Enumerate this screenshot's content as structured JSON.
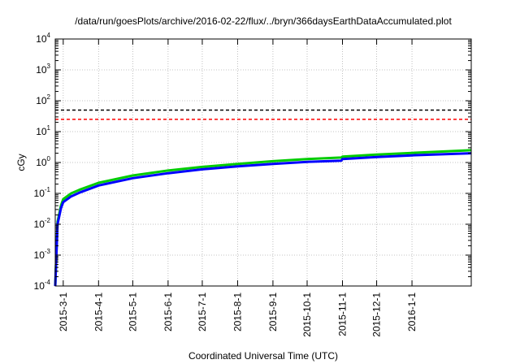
{
  "chart_data": {
    "type": "line",
    "title": "/data/run/goesPlots/archive/2016-02-22/flux/../bryn/366daysEarthDataAccumulated.plot",
    "xlabel": "Coordinated Universal Time (UTC)",
    "ylabel": "cGy",
    "y_scale": "log",
    "ylim": [
      0.0001,
      10000
    ],
    "xlim": [
      "2015-02-22",
      "2016-02-22"
    ],
    "y_ticks": [
      {
        "base": "10",
        "exp": "-4",
        "value": 0.0001
      },
      {
        "base": "10",
        "exp": "-3",
        "value": 0.001
      },
      {
        "base": "10",
        "exp": "-2",
        "value": 0.01
      },
      {
        "base": "10",
        "exp": "-1",
        "value": 0.1
      },
      {
        "base": "10",
        "exp": "0",
        "value": 1
      },
      {
        "base": "10",
        "exp": "1",
        "value": 10
      },
      {
        "base": "10",
        "exp": "2",
        "value": 100
      },
      {
        "base": "10",
        "exp": "3",
        "value": 1000
      },
      {
        "base": "10",
        "exp": "4",
        "value": 10000
      }
    ],
    "x_ticks": [
      "2015-3-1",
      "2015-4-1",
      "2015-5-1",
      "2015-6-1",
      "2015-7-1",
      "2015-8-1",
      "2015-9-1",
      "2015-10-1",
      "2015-11-1",
      "2015-12-1",
      "2016-1-1"
    ],
    "grid": true,
    "reference_lines": [
      {
        "y": 50,
        "color": "#000000",
        "style": "dashed"
      },
      {
        "y": 25,
        "color": "#ff0000",
        "style": "dashed"
      }
    ],
    "x": [
      "2015-02-22",
      "2015-02-24",
      "2015-02-27",
      "2015-03-01",
      "2015-03-08",
      "2015-03-15",
      "2015-04-01",
      "2015-05-01",
      "2015-06-01",
      "2015-07-01",
      "2015-08-01",
      "2015-09-01",
      "2015-10-01",
      "2015-10-31",
      "2015-11-01",
      "2015-12-01",
      "2016-01-01",
      "2016-02-22"
    ],
    "series": [
      {
        "color": "#00cc00",
        "values": [
          0.0001,
          0.012,
          0.04,
          0.065,
          0.1,
          0.13,
          0.22,
          0.38,
          0.55,
          0.72,
          0.9,
          1.1,
          1.3,
          1.45,
          1.55,
          1.8,
          2.05,
          2.5
        ]
      },
      {
        "color": "#0000ff",
        "values": [
          0.0001,
          0.01,
          0.033,
          0.052,
          0.08,
          0.105,
          0.18,
          0.31,
          0.45,
          0.6,
          0.75,
          0.9,
          1.05,
          1.15,
          1.3,
          1.5,
          1.7,
          2.0
        ]
      }
    ]
  }
}
